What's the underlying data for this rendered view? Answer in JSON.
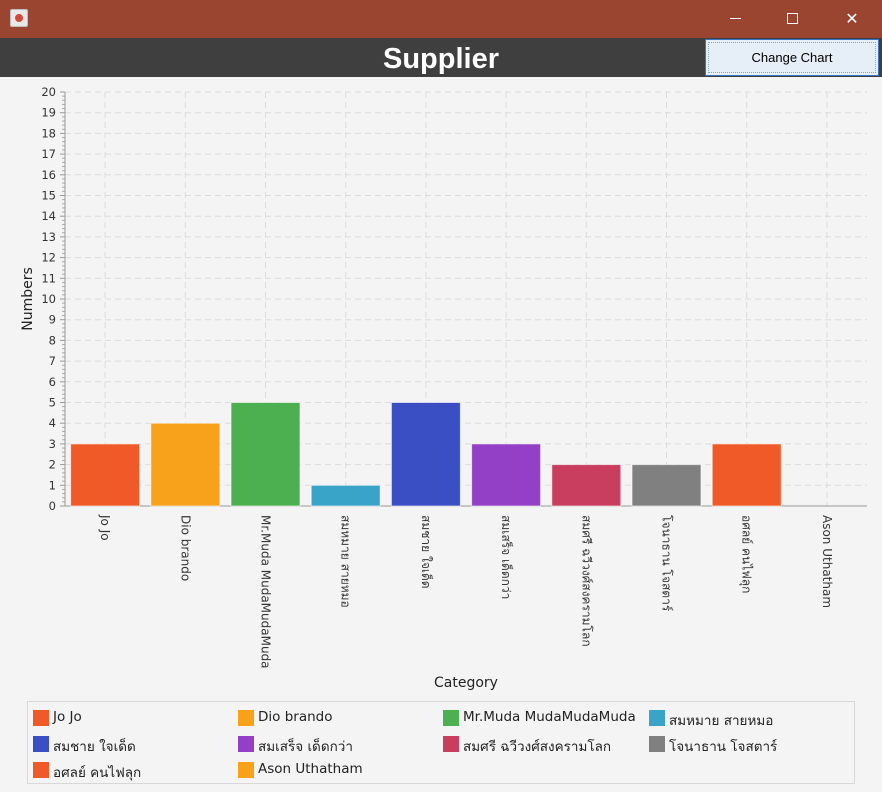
{
  "window": {
    "title": "",
    "controls": {
      "minimize": "minimize-icon",
      "maximize": "maximize-icon",
      "close": "close-icon"
    }
  },
  "header": {
    "title": "Supplier"
  },
  "toolbar": {
    "change_chart_label": "Change Chart"
  },
  "chart_data": {
    "type": "bar",
    "categories": [
      "Jo Jo",
      "Dio brando",
      "Mr.Muda MudaMudaMuda",
      "สมหมาย สายหมอ",
      "สมชาย ใจเด็ด",
      "สมเสร็จ เด็ดกว่า",
      "สมศรี ฉวีวงศ์สงครามโลก",
      "โจนาธาน โจสตาร์",
      "อศลย์ คนไฟลุก",
      "Ason Uthatham"
    ],
    "values": [
      3,
      4,
      5,
      1,
      5,
      3,
      2,
      2,
      3,
      0
    ],
    "colors": [
      "#f05a28",
      "#f8a21c",
      "#4caf50",
      "#3aa3c8",
      "#3b4fc4",
      "#9440c6",
      "#c93d5f",
      "#808080",
      "#f05a28",
      "#f8a21c"
    ],
    "xlabel": "Category",
    "ylabel": "Numbers",
    "ylim": [
      0,
      20
    ],
    "grid": true,
    "legend_position": "bottom"
  }
}
